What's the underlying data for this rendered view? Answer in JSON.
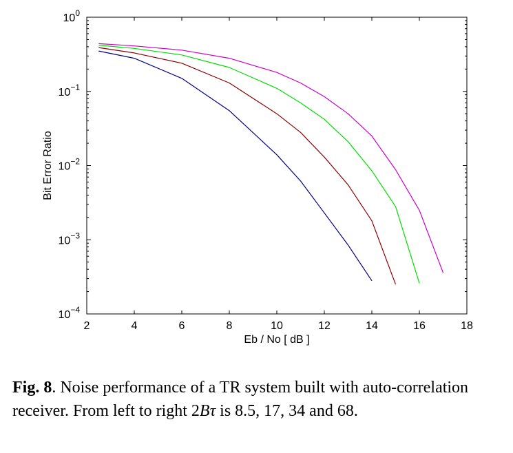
{
  "chart_data": {
    "type": "line",
    "xlabel": "Eb / No [ dB ]",
    "ylabel": "Bit Error Ratio",
    "xlim": [
      2,
      18
    ],
    "ylim": [
      0.0001,
      1
    ],
    "yscale": "log",
    "grid": false,
    "xticks": [
      "2",
      "4",
      "6",
      "8",
      "10",
      "12",
      "14",
      "16",
      "18"
    ],
    "yticks": [
      {
        "base": "10",
        "exp": "0"
      },
      {
        "base": "10",
        "exp": "−1"
      },
      {
        "base": "10",
        "exp": "−2"
      },
      {
        "base": "10",
        "exp": "−3"
      },
      {
        "base": "10",
        "exp": "−4"
      }
    ],
    "series": [
      {
        "color": "#00007f",
        "x": [
          2.5,
          4,
          6,
          8,
          10,
          11,
          12,
          13,
          14
        ],
        "y": [
          0.35,
          0.28,
          0.15,
          0.055,
          0.014,
          0.0062,
          0.0023,
          0.00085,
          0.00028
        ]
      },
      {
        "color": "#8b0000",
        "x": [
          2.5,
          4,
          6,
          8,
          10,
          11,
          12,
          13,
          14,
          15
        ],
        "y": [
          0.39,
          0.33,
          0.24,
          0.13,
          0.05,
          0.028,
          0.013,
          0.0055,
          0.0018,
          0.00025
        ]
      },
      {
        "color": "#00dd00",
        "x": [
          2.5,
          4,
          6,
          8,
          10,
          11,
          12,
          13,
          14,
          15,
          16
        ],
        "y": [
          0.42,
          0.38,
          0.31,
          0.21,
          0.11,
          0.07,
          0.042,
          0.021,
          0.0085,
          0.0028,
          0.00026
        ]
      },
      {
        "color": "#cc00cc",
        "x": [
          2.5,
          4,
          6,
          8,
          10,
          11,
          12,
          13,
          14,
          15,
          16,
          17
        ],
        "y": [
          0.44,
          0.41,
          0.36,
          0.28,
          0.18,
          0.13,
          0.085,
          0.05,
          0.025,
          0.0088,
          0.0025,
          0.00036
        ]
      }
    ]
  },
  "caption": {
    "fig": "Fig. 8",
    "text_before": ". Noise performance of a TR system built with auto-correlation receiver. From left to right 2",
    "math": "Bτ",
    "text_after": " is 8.5, 17, 34 and 68."
  }
}
